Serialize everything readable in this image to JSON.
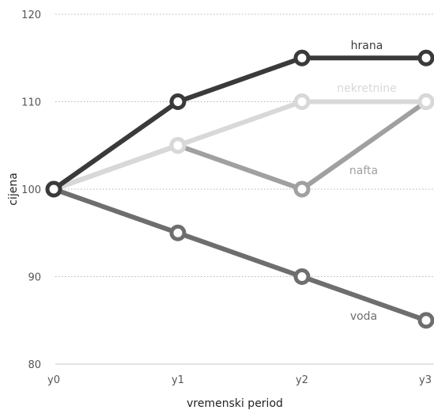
{
  "chart_data": {
    "type": "line",
    "xlabel": "vremenski period",
    "ylabel": "cijena",
    "categories": [
      "y0",
      "y1",
      "y2",
      "y3"
    ],
    "yticks": [
      80,
      90,
      100,
      110,
      120
    ],
    "ylim": [
      80,
      120
    ],
    "grid": true,
    "series": [
      {
        "name": "hrana",
        "values": [
          100,
          110,
          115,
          115
        ],
        "color": "#3a3a3a"
      },
      {
        "name": "nekretnine",
        "values": [
          100,
          105,
          110,
          110
        ],
        "color": "#d8d8d8"
      },
      {
        "name": "nafta",
        "values": [
          100,
          105,
          100,
          110
        ],
        "color": "#a0a0a0"
      },
      {
        "name": "voda",
        "values": [
          100,
          95,
          90,
          85
        ],
        "color": "#6e6e6e"
      }
    ]
  }
}
